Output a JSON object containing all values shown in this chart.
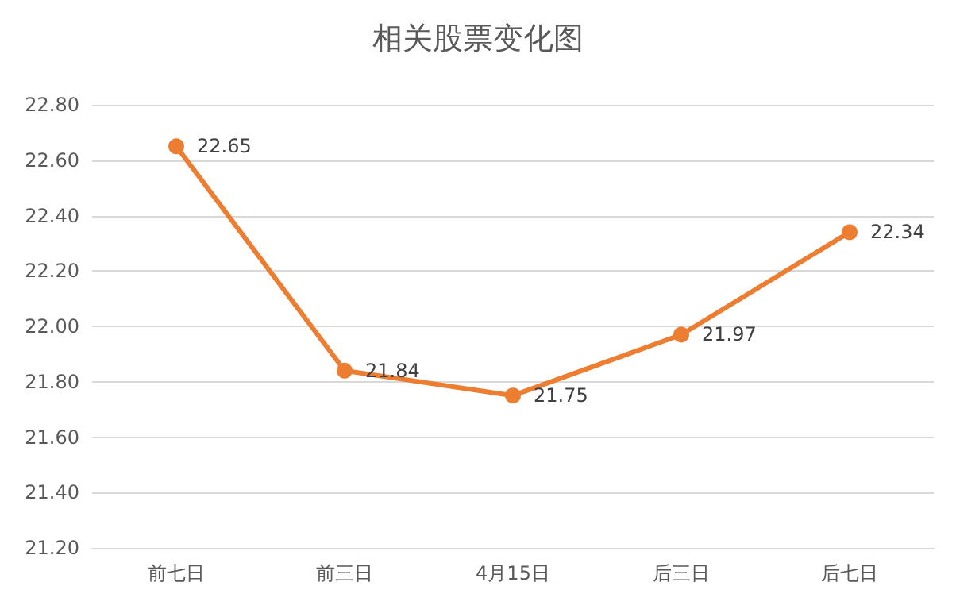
{
  "chart_data": {
    "type": "line",
    "title": "相关股票变化图",
    "categories": [
      "前七日",
      "前三日",
      "4月15日",
      "后三日",
      "后七日"
    ],
    "series": [
      {
        "color": "#ed7d31",
        "values": [
          22.65,
          21.84,
          21.75,
          21.97,
          22.34
        ]
      }
    ],
    "ylim": [
      21.2,
      22.8
    ],
    "yticks": [
      {
        "value": 21.2,
        "label": "21.20"
      },
      {
        "value": 21.4,
        "label": "21.40"
      },
      {
        "value": 21.6,
        "label": "21.60"
      },
      {
        "value": 21.8,
        "label": "21.80"
      },
      {
        "value": 22,
        "label": "22.00"
      },
      {
        "value": 22.2,
        "label": "22.20"
      },
      {
        "value": 22.4,
        "label": "22.40"
      },
      {
        "value": 22.6,
        "label": "22.60"
      },
      {
        "value": 22.8,
        "label": "22.80"
      }
    ],
    "grid": "y",
    "marker": "circle",
    "line_style": "solid",
    "data_labels": true
  }
}
